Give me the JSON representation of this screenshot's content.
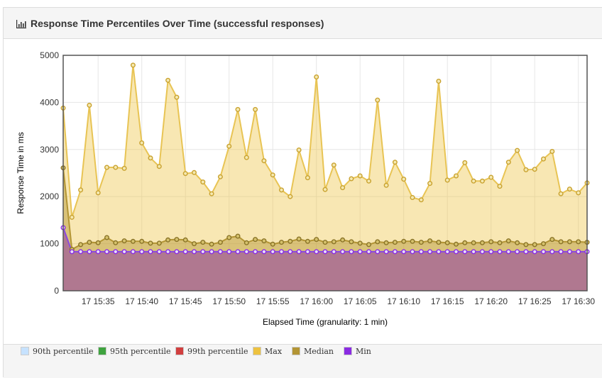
{
  "panel": {
    "title": "Response Time Percentiles Over Time (successful responses)",
    "title_icon": "bar-chart-icon"
  },
  "chart_data": {
    "type": "area",
    "title": "Response Time Percentiles Over Time (successful responses)",
    "xlabel": "Elapsed Time (granularity: 1 min)",
    "ylabel": "Response Time in ms",
    "ylim": [
      0,
      5000
    ],
    "yticks": [
      0,
      1000,
      2000,
      3000,
      4000,
      5000
    ],
    "xtick_labels": [
      "17 15:35",
      "17 15:40",
      "17 15:45",
      "17 15:50",
      "17 15:55",
      "17 16:00",
      "17 16:05",
      "17 16:10",
      "17 16:15",
      "17 16:20",
      "17 16:25",
      "17 16:30"
    ],
    "grid": true,
    "legend_position": "bottom",
    "series": [
      {
        "name": "90th percentile",
        "color": "#c6e2ff",
        "visible": false,
        "values": []
      },
      {
        "name": "95th percentile",
        "color": "#3fa33f",
        "visible": false,
        "values": []
      },
      {
        "name": "99th percentile",
        "color": "#d13f3f",
        "visible": false,
        "values": []
      },
      {
        "name": "Max",
        "color": "#edc240",
        "visible": true,
        "values": [
          3880,
          1560,
          2140,
          3940,
          2080,
          2620,
          2620,
          2600,
          4790,
          3140,
          2820,
          2640,
          4470,
          4110,
          2490,
          2510,
          2310,
          2060,
          2420,
          3070,
          3850,
          2830,
          3850,
          2760,
          2460,
          2140,
          2000,
          2990,
          2400,
          4540,
          2150,
          2670,
          2190,
          2380,
          2440,
          2330,
          4050,
          2240,
          2730,
          2370,
          1980,
          1930,
          2280,
          4450,
          2350,
          2440,
          2720,
          2330,
          2330,
          2410,
          2220,
          2730,
          2980,
          2570,
          2580,
          2800,
          2960,
          2060,
          2160,
          2080,
          2290
        ]
      },
      {
        "name": "Median",
        "color": "#b39534",
        "visible": true,
        "values": [
          2610,
          880,
          980,
          1030,
          1020,
          1130,
          1020,
          1060,
          1050,
          1050,
          1010,
          1010,
          1080,
          1090,
          1080,
          1000,
          1030,
          990,
          1030,
          1130,
          1160,
          1020,
          1090,
          1060,
          990,
          1030,
          1050,
          1100,
          1050,
          1090,
          1030,
          1040,
          1080,
          1040,
          1010,
          980,
          1040,
          1020,
          1030,
          1050,
          1050,
          1030,
          1060,
          1030,
          1020,
          990,
          1020,
          1020,
          1020,
          1040,
          1020,
          1060,
          1020,
          980,
          980,
          1000,
          1090,
          1040,
          1040,
          1040,
          1030
        ]
      },
      {
        "name": "Min",
        "color": "#8a2be2",
        "visible": true,
        "values": [
          1340,
          830,
          830,
          830,
          830,
          830,
          830,
          830,
          830,
          830,
          830,
          830,
          830,
          830,
          830,
          830,
          830,
          830,
          830,
          830,
          830,
          830,
          830,
          830,
          830,
          830,
          830,
          830,
          830,
          830,
          830,
          830,
          830,
          830,
          830,
          830,
          830,
          830,
          830,
          830,
          830,
          830,
          830,
          830,
          830,
          830,
          830,
          830,
          830,
          830,
          830,
          830,
          830,
          830,
          830,
          830,
          830,
          830,
          830,
          830,
          830
        ]
      }
    ]
  },
  "legend": [
    {
      "label": "90th percentile",
      "color": "#c6e2ff"
    },
    {
      "label": "95th percentile",
      "color": "#3fa33f"
    },
    {
      "label": "99th percentile",
      "color": "#d13f3f"
    },
    {
      "label": "Max",
      "color": "#edc240"
    },
    {
      "label": "Median",
      "color": "#b39534"
    },
    {
      "label": "Min",
      "color": "#8a2be2"
    }
  ]
}
